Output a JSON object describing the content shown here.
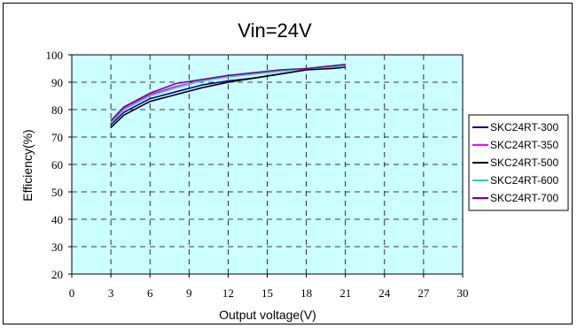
{
  "chart_data": {
    "type": "line",
    "title": "Vin=24V",
    "xlabel": "Output voltage(V)",
    "ylabel": "Efficiency(%)",
    "xlim": [
      0,
      30
    ],
    "ylim": [
      20,
      100
    ],
    "xticks": [
      0,
      3,
      6,
      9,
      12,
      15,
      18,
      21,
      24,
      27,
      30
    ],
    "yticks": [
      20,
      30,
      40,
      50,
      60,
      70,
      80,
      90,
      100
    ],
    "grid": true,
    "legend_position": "right",
    "plot_background": "#ccffff",
    "series": [
      {
        "name": "SKC24RT-300",
        "color": "#000080",
        "x": [
          3,
          4,
          6,
          8,
          10,
          12,
          14,
          16,
          18,
          20,
          21
        ],
        "y": [
          74.5,
          79,
          84,
          86.5,
          89,
          90.5,
          91.5,
          93,
          94.5,
          95.5,
          96
        ]
      },
      {
        "name": "SKC24RT-350",
        "color": "#ff00ff",
        "x": [
          3,
          4,
          6,
          8,
          10,
          12,
          14,
          16,
          18,
          20,
          21
        ],
        "y": [
          75.5,
          80.5,
          85.5,
          88.5,
          90.5,
          92,
          93,
          94,
          95,
          95.5,
          96
        ]
      },
      {
        "name": "SKC24RT-500",
        "color": "#000000",
        "x": [
          3,
          4,
          6,
          8,
          10,
          12,
          14,
          16,
          18,
          20,
          21
        ],
        "y": [
          73.5,
          78,
          83,
          85.5,
          88,
          90,
          91.5,
          93,
          94.5,
          95,
          95.5
        ]
      },
      {
        "name": "SKC24RT-600",
        "color": "#33cccc",
        "x": [
          3,
          4,
          6,
          8,
          10,
          12,
          14,
          16,
          18,
          20,
          21
        ],
        "y": [
          75,
          80,
          85,
          88,
          90.5,
          92,
          93,
          94,
          95,
          95.5,
          96
        ]
      },
      {
        "name": "SKC24RT-700",
        "color": "#800080",
        "x": [
          3,
          4,
          6,
          8,
          10,
          12,
          14,
          16,
          18,
          20,
          21
        ],
        "y": [
          76,
          81,
          86,
          89.5,
          91,
          92.5,
          93.5,
          94.5,
          95,
          96,
          96.5
        ]
      }
    ]
  }
}
